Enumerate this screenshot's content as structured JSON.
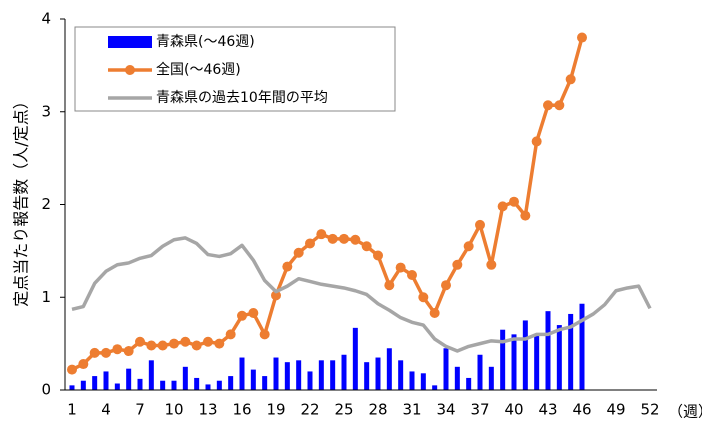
{
  "chart_data": {
    "type": "bar-line",
    "y_label": "定点当たり報告数（人/定点）",
    "x_unit": "（週）",
    "categories": [
      "1",
      null,
      null,
      "4",
      null,
      null,
      "7",
      null,
      null,
      "10",
      null,
      null,
      "13",
      null,
      null,
      "16",
      null,
      null,
      "19",
      null,
      null,
      "22",
      null,
      null,
      "25",
      null,
      null,
      "28",
      null,
      null,
      "31",
      null,
      null,
      "34",
      null,
      null,
      "37",
      null,
      null,
      "40",
      null,
      null,
      "43",
      null,
      null,
      "46",
      null,
      null,
      "49",
      null,
      null,
      "52"
    ],
    "ylim": [
      0,
      4
    ],
    "yticks": [
      0,
      1,
      2,
      3,
      4
    ],
    "series": [
      {
        "name": "青森県(～46週)",
        "kind": "bar",
        "color": "#0000ff",
        "values": [
          0.05,
          0.1,
          0.15,
          0.2,
          0.07,
          0.23,
          0.12,
          0.32,
          0.1,
          0.1,
          0.25,
          0.13,
          0.06,
          0.1,
          0.15,
          0.35,
          0.22,
          0.15,
          0.35,
          0.3,
          0.32,
          0.2,
          0.32,
          0.32,
          0.38,
          0.67,
          0.3,
          0.35,
          0.45,
          0.32,
          0.2,
          0.18,
          0.05,
          0.45,
          0.25,
          0.13,
          0.38,
          0.25,
          0.65,
          0.6,
          0.75,
          0.6,
          0.85,
          0.7,
          0.82,
          0.93,
          null,
          null,
          null,
          null,
          null,
          null
        ]
      },
      {
        "name": "全国(～46週)",
        "kind": "line-marker",
        "color": "#ed7d31",
        "values": [
          0.22,
          0.28,
          0.4,
          0.4,
          0.44,
          0.42,
          0.52,
          0.48,
          0.48,
          0.5,
          0.52,
          0.48,
          0.52,
          0.5,
          0.6,
          0.8,
          0.83,
          0.6,
          1.02,
          1.33,
          1.48,
          1.58,
          1.68,
          1.63,
          1.63,
          1.62,
          1.55,
          1.45,
          1.13,
          1.32,
          1.24,
          1.0,
          0.83,
          1.13,
          1.35,
          1.55,
          1.78,
          1.35,
          1.98,
          2.03,
          1.88,
          2.68,
          3.07,
          3.07,
          3.35,
          3.8,
          null,
          null,
          null,
          null,
          null,
          null
        ]
      },
      {
        "name": "青森県の過去10年間の平均",
        "kind": "line",
        "color": "#a6a6a6",
        "values": [
          0.87,
          0.9,
          1.15,
          1.28,
          1.35,
          1.37,
          1.42,
          1.45,
          1.55,
          1.62,
          1.64,
          1.58,
          1.46,
          1.44,
          1.47,
          1.56,
          1.4,
          1.18,
          1.06,
          1.12,
          1.2,
          1.17,
          1.14,
          1.12,
          1.1,
          1.07,
          1.03,
          0.93,
          0.86,
          0.78,
          0.73,
          0.7,
          0.55,
          0.47,
          0.42,
          0.47,
          0.5,
          0.53,
          0.52,
          0.55,
          0.55,
          0.6,
          0.6,
          0.65,
          0.68,
          0.75,
          0.82,
          0.92,
          1.07,
          1.1,
          1.12,
          0.88
        ]
      }
    ]
  }
}
